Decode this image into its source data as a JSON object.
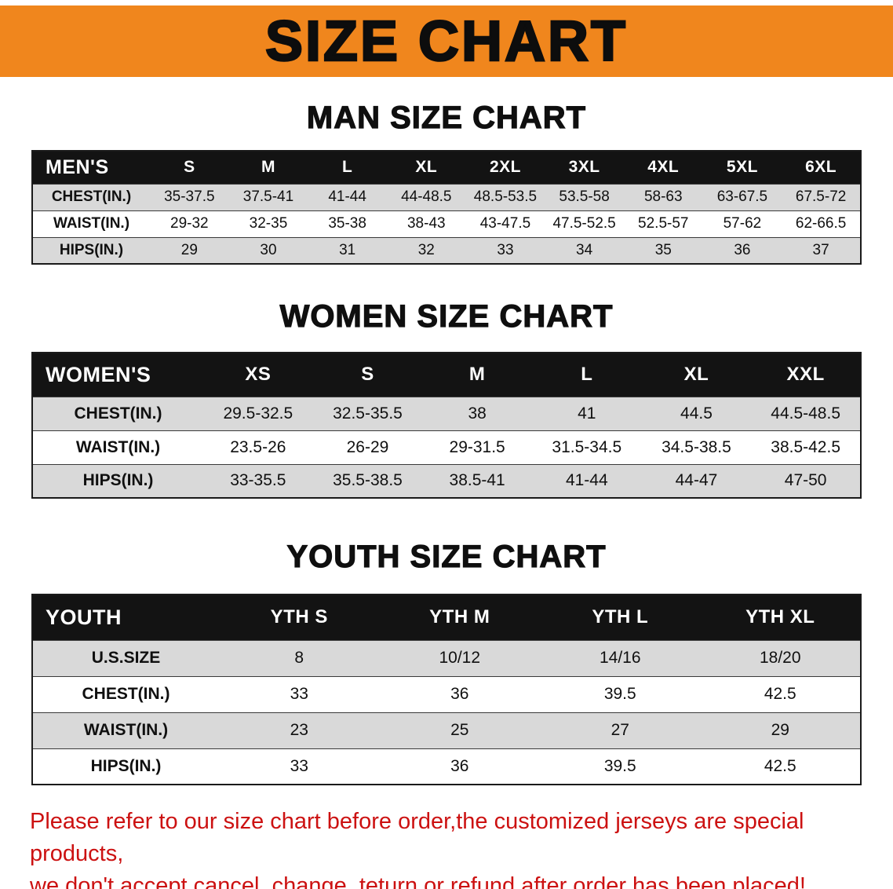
{
  "banner": {
    "title": "SIZE CHART"
  },
  "sections": [
    {
      "id": "men",
      "heading": "MAN SIZE CHART",
      "table": {
        "header": [
          "MEN'S",
          "S",
          "M",
          "L",
          "XL",
          "2XL",
          "3XL",
          "4XL",
          "5XL",
          "6XL"
        ],
        "rows": [
          [
            "CHEST(IN.)",
            "35-37.5",
            "37.5-41",
            "41-44",
            "44-48.5",
            "48.5-53.5",
            "53.5-58",
            "58-63",
            "63-67.5",
            "67.5-72"
          ],
          [
            "WAIST(IN.)",
            "29-32",
            "32-35",
            "35-38",
            "38-43",
            "43-47.5",
            "47.5-52.5",
            "52.5-57",
            "57-62",
            "62-66.5"
          ],
          [
            "HIPS(IN.)",
            "29",
            "30",
            "31",
            "32",
            "33",
            "34",
            "35",
            "36",
            "37"
          ]
        ]
      }
    },
    {
      "id": "women",
      "heading": "WOMEN SIZE CHART",
      "table": {
        "header": [
          "WOMEN'S",
          "XS",
          "S",
          "M",
          "L",
          "XL",
          "XXL"
        ],
        "rows": [
          [
            "CHEST(IN.)",
            "29.5-32.5",
            "32.5-35.5",
            "38",
            "41",
            "44.5",
            "44.5-48.5"
          ],
          [
            "WAIST(IN.)",
            "23.5-26",
            "26-29",
            "29-31.5",
            "31.5-34.5",
            "34.5-38.5",
            "38.5-42.5"
          ],
          [
            "HIPS(IN.)",
            "33-35.5",
            "35.5-38.5",
            "38.5-41",
            "41-44",
            "44-47",
            "47-50"
          ]
        ]
      }
    },
    {
      "id": "youth",
      "heading": "YOUTH SIZE CHART",
      "table": {
        "header": [
          "YOUTH",
          "YTH S",
          "YTH M",
          "YTH L",
          "YTH XL"
        ],
        "rows": [
          [
            "U.S.SIZE",
            "8",
            "10/12",
            "14/16",
            "18/20"
          ],
          [
            "CHEST(IN.)",
            "33",
            "36",
            "39.5",
            "42.5"
          ],
          [
            "WAIST(IN.)",
            "23",
            "25",
            "27",
            "29"
          ],
          [
            "HIPS(IN.)",
            "33",
            "36",
            "39.5",
            "42.5"
          ]
        ]
      }
    }
  ],
  "disclaimer": {
    "line1": "Please refer to our size chart before order,the customized jerseys are special products,",
    "line2": "we don't accept cancel, change, teturn or refund after order has been placed!"
  },
  "colors": {
    "banner_orange": "#f0861d",
    "table_header_black": "#131313",
    "stripe_gray": "#d9d9d9",
    "disclaimer_red": "#cc1111"
  }
}
